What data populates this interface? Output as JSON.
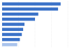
{
  "chart_data": {
    "type": "bar",
    "orientation": "horizontal",
    "categories": [
      null,
      null,
      null,
      null,
      null,
      null,
      null,
      null,
      null
    ],
    "values": [
      89,
      85,
      55,
      50,
      34,
      32,
      30,
      27,
      23
    ],
    "colors": [
      "#3b72c8",
      "#3b72c8",
      "#3b72c8",
      "#3b72c8",
      "#3b72c8",
      "#3b72c8",
      "#3b72c8",
      "#3b72c8",
      "#a9c3ec"
    ],
    "xlim": [
      0,
      100
    ],
    "xticks": [
      0,
      25,
      50,
      75,
      100
    ],
    "grid": true,
    "tick_labels": false
  }
}
